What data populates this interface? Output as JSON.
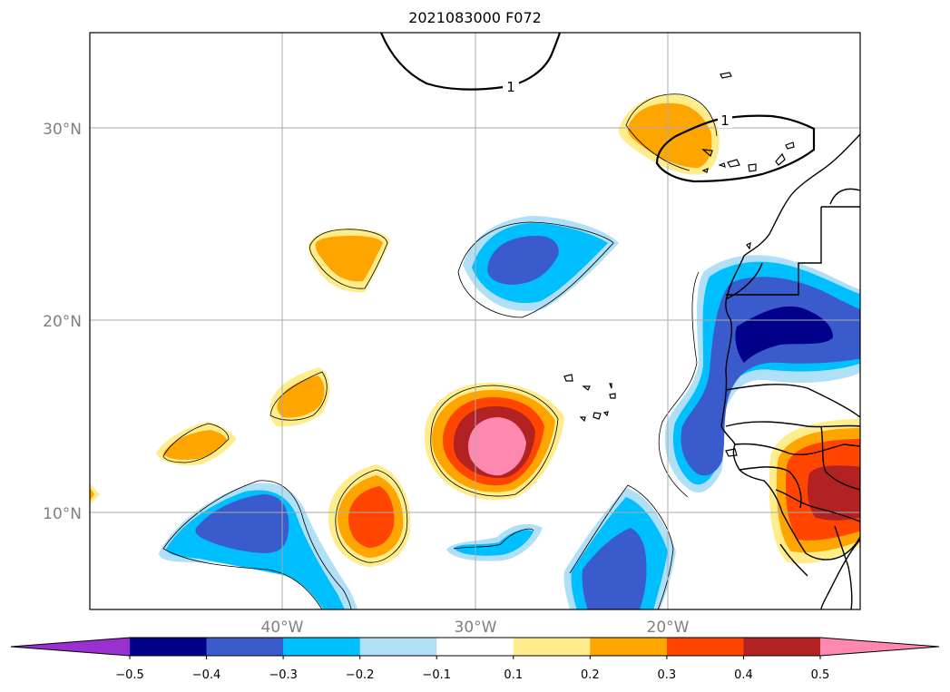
{
  "title": "2021083000 F072",
  "map": {
    "lat_labels": [
      "30°N",
      "20°N",
      "10°N"
    ],
    "lon_labels": [
      "40°W",
      "30°W",
      "20°W"
    ],
    "contour_labels": [
      "1",
      "1"
    ]
  },
  "colorbar": {
    "ticks": [
      "−0.5",
      "−0.4",
      "−0.3",
      "−0.2",
      "−0.1",
      "0.1",
      "0.2",
      "0.3",
      "0.4",
      "0.5"
    ],
    "colors": [
      "#9b30d0",
      "#00008b",
      "#3a5bcb",
      "#00bfff",
      "#b0e0f8",
      "#ffffff",
      "#ffec8b",
      "#ffa500",
      "#ff4500",
      "#b22222",
      "#ff88b0"
    ]
  }
}
